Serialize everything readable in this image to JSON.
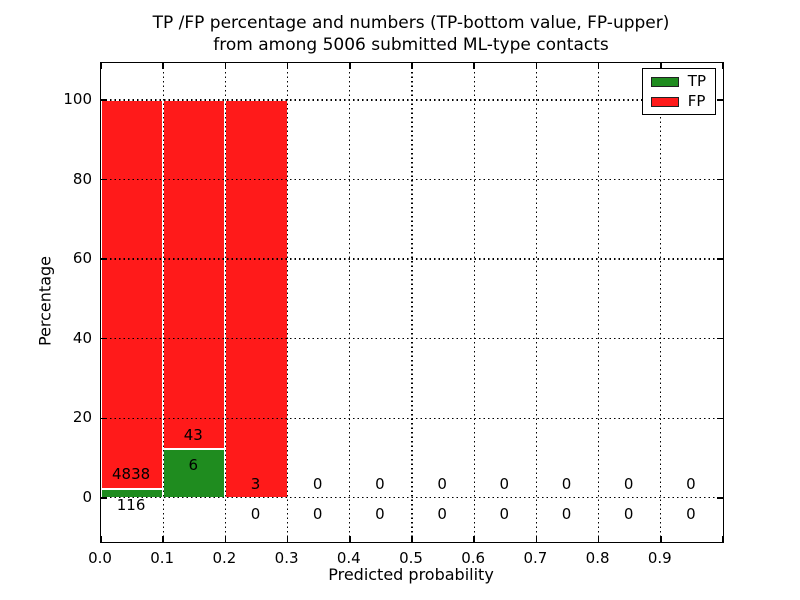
{
  "chart_data": {
    "type": "bar",
    "stacked": true,
    "title_line1": "TP /FP percentage and numbers (TP-bottom value, FP-upper)",
    "title_line2": "from among 5006 submitted ML-type contacts",
    "xlabel": "Predicted probability",
    "ylabel": "Percentage",
    "xlim": [
      0,
      1.0
    ],
    "ylim": [
      -11.1,
      109.3
    ],
    "grid": true,
    "colors": {
      "tp": "#1f8c1f",
      "fp": "#ff1a1a"
    },
    "y_ticks": [
      {
        "v": 0,
        "label": "0"
      },
      {
        "v": 20,
        "label": "20"
      },
      {
        "v": 40,
        "label": "40"
      },
      {
        "v": 60,
        "label": "60"
      },
      {
        "v": 80,
        "label": "80"
      },
      {
        "v": 100,
        "label": "100"
      }
    ],
    "x_ticks": [
      {
        "v": 0.0,
        "label": "0.0"
      },
      {
        "v": 0.1,
        "label": "0.1"
      },
      {
        "v": 0.2,
        "label": "0.2"
      },
      {
        "v": 0.3,
        "label": "0.3"
      },
      {
        "v": 0.4,
        "label": "0.4"
      },
      {
        "v": 0.5,
        "label": "0.5"
      },
      {
        "v": 0.6,
        "label": "0.6"
      },
      {
        "v": 0.7,
        "label": "0.7"
      },
      {
        "v": 0.8,
        "label": "0.8"
      },
      {
        "v": 0.9,
        "label": "0.9"
      },
      {
        "v": 1.0,
        "label": ""
      }
    ],
    "legend": {
      "position": "upper-right",
      "entries": [
        {
          "label": "TP",
          "color": "#1f8c1f"
        },
        {
          "label": "FP",
          "color": "#ff1a1a"
        }
      ]
    },
    "bins": [
      {
        "x0": 0.0,
        "x1": 0.1,
        "fp_count": "4838",
        "tp_count": "116",
        "tp_pct": 2.34,
        "fp_pct": 97.66
      },
      {
        "x0": 0.1,
        "x1": 0.2,
        "fp_count": "43",
        "tp_count": "6",
        "tp_pct": 12.24,
        "fp_pct": 87.76
      },
      {
        "x0": 0.2,
        "x1": 0.3,
        "fp_count": "3",
        "tp_count": "0",
        "tp_pct": 0,
        "fp_pct": 100
      },
      {
        "x0": 0.3,
        "x1": 0.4,
        "fp_count": "0",
        "tp_count": "0",
        "tp_pct": 0,
        "fp_pct": 0
      },
      {
        "x0": 0.4,
        "x1": 0.5,
        "fp_count": "0",
        "tp_count": "0",
        "tp_pct": 0,
        "fp_pct": 0
      },
      {
        "x0": 0.5,
        "x1": 0.6,
        "fp_count": "0",
        "tp_count": "0",
        "tp_pct": 0,
        "fp_pct": 0
      },
      {
        "x0": 0.6,
        "x1": 0.7,
        "fp_count": "0",
        "tp_count": "0",
        "tp_pct": 0,
        "fp_pct": 0
      },
      {
        "x0": 0.7,
        "x1": 0.8,
        "fp_count": "0",
        "tp_count": "0",
        "tp_pct": 0,
        "fp_pct": 0
      },
      {
        "x0": 0.8,
        "x1": 0.9,
        "fp_count": "0",
        "tp_count": "0",
        "tp_pct": 0,
        "fp_pct": 0
      },
      {
        "x0": 0.9,
        "x1": 1.0,
        "fp_count": "0",
        "tp_count": "0",
        "tp_pct": 0,
        "fp_pct": 0
      }
    ],
    "series": [
      {
        "name": "TP",
        "counts": [
          116,
          6,
          0,
          0,
          0,
          0,
          0,
          0,
          0,
          0
        ]
      },
      {
        "name": "FP",
        "counts": [
          4838,
          43,
          3,
          0,
          0,
          0,
          0,
          0,
          0,
          0
        ]
      }
    ]
  }
}
